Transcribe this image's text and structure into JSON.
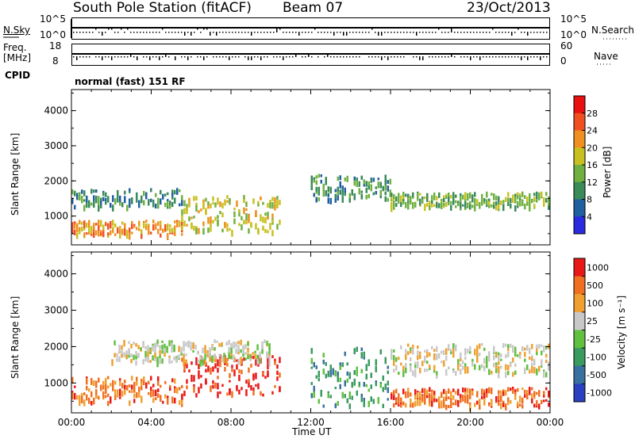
{
  "header": {
    "station": "South Pole Station (fitACF)",
    "beam": "Beam 07",
    "date": "23/Oct/2013"
  },
  "params": {
    "nsky_label": "N.Sky",
    "nsky_ticks": [
      "10^5",
      "10^0"
    ],
    "nsearch_label": "N.Search",
    "nsearch_ticks": [
      "10^5",
      "10^0"
    ],
    "freq_label": "Freq.",
    "freq_unit": "[MHz]",
    "freq_ticks": [
      "18",
      "8"
    ],
    "nave_label": "Nave",
    "nave_ticks": [
      "60",
      "0"
    ],
    "cpid_label": "CPID",
    "cpid_value": "normal (fast) 151 RF"
  },
  "axes": {
    "xlabel": "Time UT",
    "xticks": [
      "00:00",
      "04:00",
      "08:00",
      "12:00",
      "16:00",
      "20:00",
      "00:00"
    ],
    "ylabel": "Slant Range [km]",
    "yticks": [
      "4000",
      "3000",
      "2000",
      "1000"
    ]
  },
  "chart_data": [
    {
      "type": "heatmap",
      "title": "Power",
      "colorbar_label": "Power [dB]",
      "colorbar_ticks": [
        "28",
        "24",
        "20",
        "16",
        "12",
        "8",
        "4"
      ],
      "colors": [
        "#2a2adf",
        "#2060a0",
        "#3a8a5a",
        "#6fb040",
        "#c8c020",
        "#f09020",
        "#f05020",
        "#e81010"
      ],
      "x_range_hours": [
        0,
        24
      ],
      "y_range_km": [
        180,
        4600
      ],
      "features": [
        {
          "t": [
            0,
            5.5
          ],
          "r": [
            1300,
            1800
          ],
          "level": 2
        },
        {
          "t": [
            0,
            5.5
          ],
          "r": [
            500,
            900
          ],
          "level": 5
        },
        {
          "t": [
            5.5,
            10.5
          ],
          "r": [
            600,
            1600
          ],
          "level": 4
        },
        {
          "t": [
            12,
            16
          ],
          "r": [
            1500,
            2200
          ],
          "level": 2
        },
        {
          "t": [
            16,
            24
          ],
          "r": [
            1300,
            1700
          ],
          "level": 3
        }
      ]
    },
    {
      "type": "heatmap",
      "title": "Velocity",
      "colorbar_label": "Velocity [m s⁻¹]",
      "colorbar_ticks": [
        "1000",
        "500",
        "100",
        "25",
        "-25",
        "-100",
        "-500",
        "-1000"
      ],
      "colors": [
        "#2a40c0",
        "#3a70a0",
        "#3a9a60",
        "#60c040",
        "#c8c8c8",
        "#f0a030",
        "#f07020",
        "#e81818"
      ],
      "x_range_hours": [
        0,
        24
      ],
      "y_range_km": [
        180,
        4600
      ],
      "features": [
        {
          "t": [
            0,
            5.5
          ],
          "r": [
            500,
            1200
          ],
          "level": 6
        },
        {
          "t": [
            5.5,
            10.5
          ],
          "r": [
            700,
            1800
          ],
          "level": 7
        },
        {
          "t": [
            2,
            10
          ],
          "r": [
            1600,
            2200
          ],
          "level": 4
        },
        {
          "t": [
            12,
            16
          ],
          "r": [
            400,
            2000
          ],
          "level": 2
        },
        {
          "t": [
            16,
            24
          ],
          "r": [
            1300,
            2100
          ],
          "level": 4
        },
        {
          "t": [
            16,
            24
          ],
          "r": [
            400,
            900
          ],
          "level": 6
        }
      ]
    }
  ]
}
